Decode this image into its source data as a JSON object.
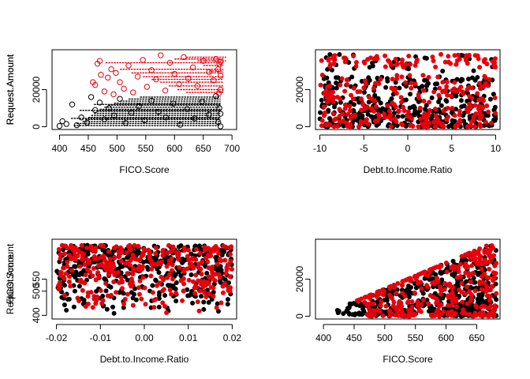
{
  "chart_data": [
    {
      "type": "scatter",
      "xlabel": "FICO.Score",
      "ylabel": "Request.Amount",
      "xlim": [
        387,
        708
      ],
      "ylim": [
        -1500,
        41500
      ],
      "xticks": [
        400,
        450,
        500,
        550,
        600,
        650,
        700
      ],
      "yticks": [
        0,
        20000
      ],
      "grid": false,
      "series": [
        {
          "color": "#000000",
          "marker": "open-circle",
          "points": [
            [
              400,
              400
            ],
            [
              405,
              3000
            ],
            [
              412,
              1500
            ],
            [
              422,
              12000
            ],
            [
              430,
              800
            ],
            [
              438,
              5000
            ],
            [
              448,
              2200
            ],
            [
              455,
              16000
            ],
            [
              462,
              9000
            ],
            [
              470,
              13000
            ],
            [
              478,
              4000
            ],
            [
              486,
              10000
            ],
            [
              495,
              6000
            ],
            [
              505,
              15000
            ],
            [
              515,
              2000
            ],
            [
              525,
              7500
            ],
            [
              538,
              11000
            ],
            [
              548,
              3500
            ],
            [
              560,
              14000
            ],
            [
              572,
              8000
            ],
            [
              585,
              5000
            ],
            [
              598,
              12500
            ],
            [
              610,
              1000
            ],
            [
              622,
              9500
            ],
            [
              635,
              4500
            ],
            [
              648,
              13500
            ],
            [
              660,
              6500
            ],
            [
              672,
              16500
            ],
            [
              678,
              10000
            ],
            [
              680,
              200
            ],
            [
              676,
              2500
            ],
            [
              680,
              7000
            ]
          ],
          "hlines": [
            [
              425,
              680,
              600
            ],
            [
              430,
              680,
              1700
            ],
            [
              440,
              680,
              2800
            ],
            [
              445,
              680,
              3900
            ],
            [
              450,
              680,
              5000
            ],
            [
              455,
              680,
              6100
            ],
            [
              460,
              680,
              7200
            ],
            [
              465,
              680,
              8300
            ],
            [
              470,
              680,
              9400
            ],
            [
              478,
              680,
              10500
            ],
            [
              485,
              680,
              11600
            ],
            [
              495,
              680,
              12700
            ],
            [
              505,
              680,
              13800
            ],
            [
              520,
              680,
              14900
            ],
            [
              540,
              680,
              16000
            ],
            [
              420,
              680,
              4500
            ],
            [
              435,
              680,
              8800
            ],
            [
              460,
              680,
              12000
            ]
          ]
        },
        {
          "color": "#e8000b",
          "marker": "open-circle",
          "points": [
            [
              458,
              24000
            ],
            [
              462,
              22500
            ],
            [
              466,
              34000
            ],
            [
              470,
              35500
            ],
            [
              472,
              28000
            ],
            [
              478,
              19000
            ],
            [
              484,
              26500
            ],
            [
              490,
              31000
            ],
            [
              494,
              17500
            ],
            [
              498,
              29000
            ],
            [
              505,
              24000
            ],
            [
              512,
              20500
            ],
            [
              520,
              33000
            ],
            [
              528,
              18500
            ],
            [
              536,
              27000
            ],
            [
              545,
              36000
            ],
            [
              552,
              21500
            ],
            [
              560,
              30500
            ],
            [
              568,
              25500
            ],
            [
              576,
              38500
            ],
            [
              584,
              19500
            ],
            [
              592,
              34500
            ],
            [
              600,
              28500
            ],
            [
              608,
              23000
            ],
            [
              616,
              37500
            ],
            [
              624,
              26000
            ],
            [
              632,
              32000
            ],
            [
              640,
              22000
            ],
            [
              650,
              35500
            ],
            [
              660,
              29500
            ],
            [
              668,
              25000
            ],
            [
              672,
              36500
            ],
            [
              676,
              31000
            ],
            [
              678,
              33500
            ],
            [
              680,
              27500
            ],
            [
              680,
              20000
            ],
            [
              677,
              18000
            ],
            [
              680,
              35000
            ]
          ],
          "hlines": [
            [
              480,
              685,
              34500
            ],
            [
              505,
              685,
              31000
            ],
            [
              525,
              685,
              29000
            ],
            [
              545,
              685,
              27000
            ],
            [
              560,
              685,
              25500
            ],
            [
              575,
              685,
              24000
            ],
            [
              590,
              685,
              22000
            ],
            [
              605,
              685,
              20000
            ],
            [
              620,
              685,
              18500
            ],
            [
              600,
              685,
              36500
            ],
            [
              620,
              690,
              37500
            ],
            [
              640,
              690,
              35500
            ],
            [
              650,
              685,
              33000
            ],
            [
              660,
              685,
              30000
            ]
          ]
        }
      ]
    },
    {
      "type": "scatter",
      "xlabel": "Debt.to.Income.Ratio",
      "ylabel": "Request.Amount",
      "xlim": [
        -10.5,
        10.5
      ],
      "ylim": [
        -1500,
        41500
      ],
      "xticks": [
        -10,
        -5,
        0,
        5,
        10
      ],
      "yticks": [
        0,
        20000
      ],
      "grid": false,
      "series": [
        {
          "color": "#000000",
          "marker": "filled-circle",
          "n": 450,
          "seed": 11
        },
        {
          "color": "#e8000b",
          "marker": "filled-circle",
          "n": 330,
          "seed": 23
        }
      ]
    },
    {
      "type": "scatter",
      "xlabel": "Debt.to.Income.Ratio",
      "ylabel": "FICO.Score",
      "xlim": [
        -0.021,
        0.021
      ],
      "ylim": [
        385,
        715
      ],
      "xticks": [
        -0.02,
        -0.01,
        0.0,
        0.01,
        0.02
      ],
      "yticks": [
        400,
        500,
        550
      ],
      "grid": false,
      "series": [
        {
          "color": "#000000",
          "marker": "filled-circle",
          "n": 470,
          "seed": 37
        },
        {
          "color": "#e8000b",
          "marker": "filled-circle",
          "n": 340,
          "seed": 41
        }
      ]
    },
    {
      "type": "scatter",
      "xlabel": "FICO.Score",
      "ylabel": "Request.Amount",
      "xlim": [
        387,
        688
      ],
      "ylim": [
        -1500,
        41500
      ],
      "xticks": [
        400,
        450,
        500,
        550,
        600,
        650
      ],
      "yticks": [
        0,
        20000
      ],
      "grid": false,
      "series": [
        {
          "color": "#000000",
          "marker": "filled-circle",
          "n": 480,
          "seed": 53
        },
        {
          "color": "#e8000b",
          "marker": "filled-circle",
          "n": 330,
          "seed": 67
        }
      ]
    }
  ]
}
